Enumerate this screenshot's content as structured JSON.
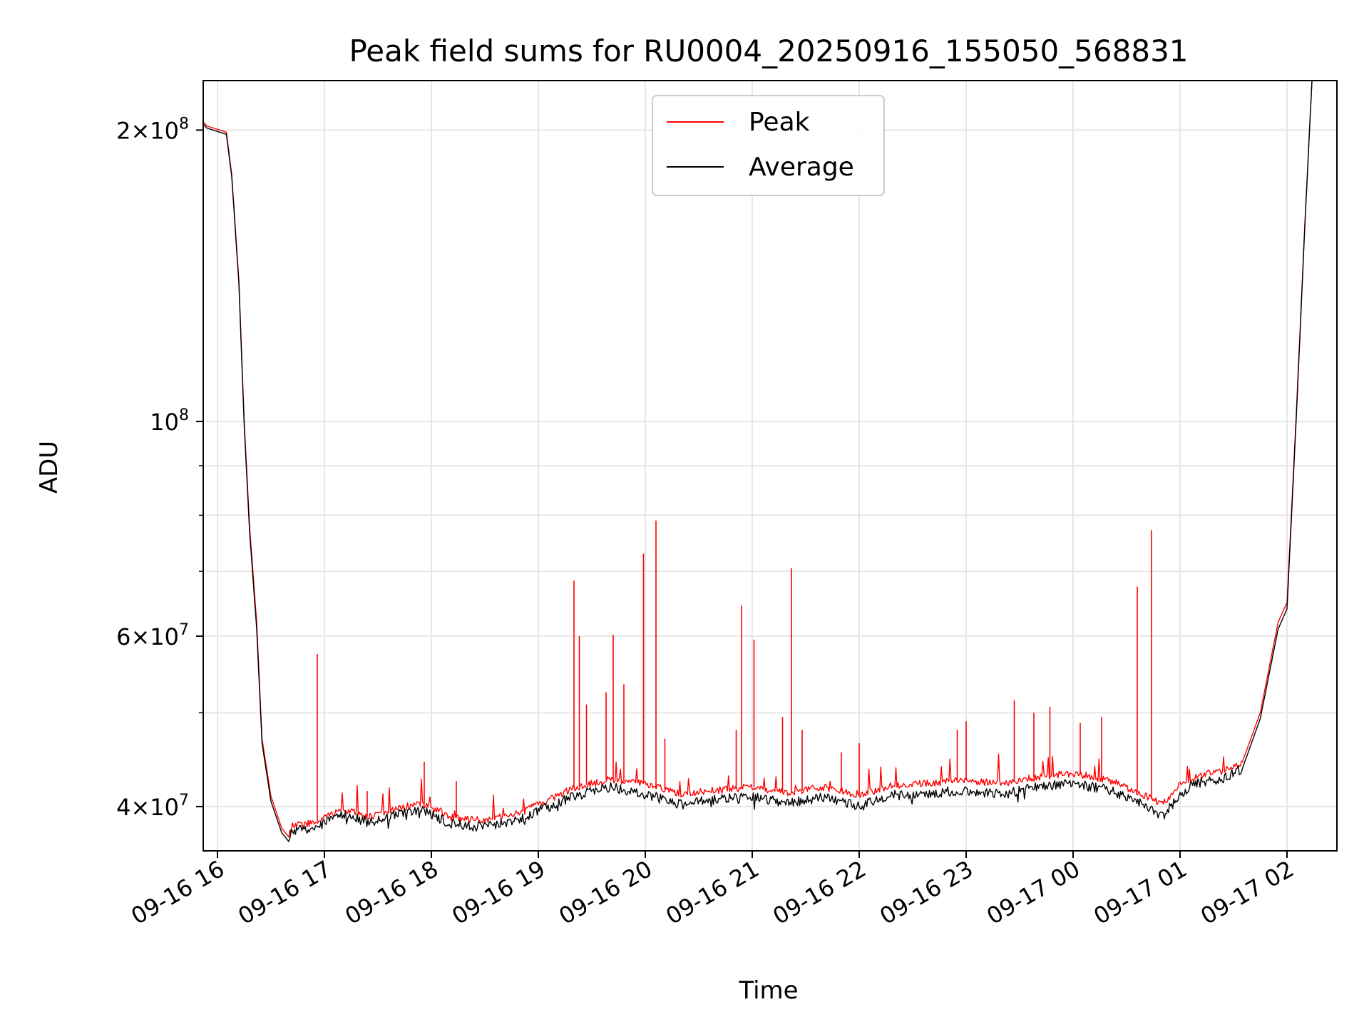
{
  "chart_data": {
    "type": "line",
    "title": "Peak field sums for RU0004_20250916_155050_568831",
    "xlabel": "Time",
    "ylabel": "ADU",
    "y_scale": "log",
    "ylim": [
      36000000,
      225000000
    ],
    "xlim": [
      "2025-09-16 15:52",
      "2025-09-17 02:28"
    ],
    "grid": true,
    "legend_position": "top-center",
    "x_ticks": [
      {
        "t": "2025-09-16 16:00",
        "label": "09-16 16"
      },
      {
        "t": "2025-09-16 17:00",
        "label": "09-16 17"
      },
      {
        "t": "2025-09-16 18:00",
        "label": "09-16 18"
      },
      {
        "t": "2025-09-16 19:00",
        "label": "09-16 19"
      },
      {
        "t": "2025-09-16 20:00",
        "label": "09-16 20"
      },
      {
        "t": "2025-09-16 21:00",
        "label": "09-16 21"
      },
      {
        "t": "2025-09-16 22:00",
        "label": "09-16 22"
      },
      {
        "t": "2025-09-16 23:00",
        "label": "09-16 23"
      },
      {
        "t": "2025-09-17 00:00",
        "label": "09-17 00"
      },
      {
        "t": "2025-09-17 01:00",
        "label": "09-17 01"
      },
      {
        "t": "2025-09-17 02:00",
        "label": "09-17 02"
      }
    ],
    "y_major_ticks": [
      {
        "value": 40000000,
        "mantissa": "4",
        "exp": "7"
      },
      {
        "value": 60000000,
        "mantissa": "6",
        "exp": "7"
      },
      {
        "value": 100000000,
        "mantissa": "",
        "exp": "8"
      },
      {
        "value": 200000000,
        "mantissa": "2",
        "exp": "8"
      }
    ],
    "y_minor_ticks": [
      50000000,
      70000000,
      80000000,
      90000000
    ],
    "series": [
      {
        "name": "Peak",
        "color": "#ff0000",
        "baseline": [
          [
            "2025-09-16 15:52",
            204000000
          ],
          [
            "2025-09-16 15:54",
            202000000
          ],
          [
            "2025-09-16 16:05",
            199000000
          ],
          [
            "2025-09-16 16:08",
            180000000
          ],
          [
            "2025-09-16 16:12",
            140000000
          ],
          [
            "2025-09-16 16:15",
            100000000
          ],
          [
            "2025-09-16 16:18",
            78000000
          ],
          [
            "2025-09-16 16:22",
            62000000
          ],
          [
            "2025-09-16 16:25",
            47000000
          ],
          [
            "2025-09-16 16:30",
            41000000
          ],
          [
            "2025-09-16 16:36",
            38000000
          ],
          [
            "2025-09-16 16:40",
            37200000
          ],
          [
            "2025-09-16 16:42",
            38200000
          ],
          [
            "2025-09-16 16:55",
            38500000
          ],
          [
            "2025-09-16 17:10",
            39800000
          ],
          [
            "2025-09-16 17:25",
            39000000
          ],
          [
            "2025-09-16 17:40",
            39800000
          ],
          [
            "2025-09-16 17:55",
            40300000
          ],
          [
            "2025-09-16 18:10",
            39000000
          ],
          [
            "2025-09-16 18:30",
            38700000
          ],
          [
            "2025-09-16 18:50",
            39400000
          ],
          [
            "2025-09-16 19:00",
            40200000
          ],
          [
            "2025-09-16 19:20",
            41800000
          ],
          [
            "2025-09-16 19:40",
            42700000
          ],
          [
            "2025-09-16 20:00",
            42200000
          ],
          [
            "2025-09-16 20:20",
            41200000
          ],
          [
            "2025-09-16 20:40",
            41600000
          ],
          [
            "2025-09-16 21:00",
            41900000
          ],
          [
            "2025-09-16 21:20",
            41300000
          ],
          [
            "2025-09-16 21:40",
            41900000
          ],
          [
            "2025-09-16 22:00",
            41100000
          ],
          [
            "2025-09-16 22:20",
            42100000
          ],
          [
            "2025-09-16 22:40",
            42300000
          ],
          [
            "2025-09-16 23:00",
            42600000
          ],
          [
            "2025-09-16 23:20",
            42200000
          ],
          [
            "2025-09-16 23:40",
            42900000
          ],
          [
            "2025-09-17 00:00",
            43300000
          ],
          [
            "2025-09-17 00:20",
            42600000
          ],
          [
            "2025-09-17 00:40",
            41100000
          ],
          [
            "2025-09-17 00:50",
            40200000
          ],
          [
            "2025-09-17 01:00",
            42100000
          ],
          [
            "2025-09-17 01:10",
            43100000
          ],
          [
            "2025-09-17 01:25",
            43600000
          ],
          [
            "2025-09-17 01:35",
            44500000
          ],
          [
            "2025-09-17 01:45",
            50000000
          ],
          [
            "2025-09-17 01:55",
            62000000
          ],
          [
            "2025-09-17 02:00",
            65000000
          ],
          [
            "2025-09-17 02:05",
            100000000
          ],
          [
            "2025-09-17 02:10",
            160000000
          ],
          [
            "2025-09-17 02:14",
            225000000
          ],
          [
            "2025-09-17 02:28",
            225000000
          ]
        ],
        "spikes": [
          [
            "2025-09-16 16:56",
            57500000
          ],
          [
            "2025-09-16 17:24",
            41500000
          ],
          [
            "2025-09-16 17:56",
            44500000
          ],
          [
            "2025-09-16 18:14",
            42500000
          ],
          [
            "2025-09-16 19:20",
            68500000
          ],
          [
            "2025-09-16 19:23",
            60000000
          ],
          [
            "2025-09-16 19:27",
            51000000
          ],
          [
            "2025-09-16 19:38",
            52500000
          ],
          [
            "2025-09-16 19:42",
            60200000
          ],
          [
            "2025-09-16 19:48",
            53500000
          ],
          [
            "2025-09-16 19:59",
            73000000
          ],
          [
            "2025-09-16 20:06",
            79000000
          ],
          [
            "2025-09-16 20:11",
            47000000
          ],
          [
            "2025-09-16 20:51",
            48000000
          ],
          [
            "2025-09-16 20:54",
            64500000
          ],
          [
            "2025-09-16 21:01",
            59500000
          ],
          [
            "2025-09-16 21:17",
            49500000
          ],
          [
            "2025-09-16 21:22",
            70500000
          ],
          [
            "2025-09-16 21:28",
            48000000
          ],
          [
            "2025-09-16 21:50",
            45500000
          ],
          [
            "2025-09-16 22:00",
            46500000
          ],
          [
            "2025-09-16 22:55",
            48000000
          ],
          [
            "2025-09-16 23:00",
            49000000
          ],
          [
            "2025-09-16 23:27",
            51500000
          ],
          [
            "2025-09-16 23:38",
            50000000
          ],
          [
            "2025-09-16 23:47",
            50700000
          ],
          [
            "2025-09-17 00:04",
            48800000
          ],
          [
            "2025-09-17 00:16",
            49500000
          ],
          [
            "2025-09-17 00:36",
            67500000
          ],
          [
            "2025-09-17 00:44",
            77200000
          ]
        ]
      },
      {
        "name": "Average",
        "color": "#000000",
        "baseline": [
          [
            "2025-09-16 15:52",
            203000000
          ],
          [
            "2025-09-16 15:54",
            201000000
          ],
          [
            "2025-09-16 16:05",
            198000000
          ],
          [
            "2025-09-16 16:08",
            179000000
          ],
          [
            "2025-09-16 16:12",
            139000000
          ],
          [
            "2025-09-16 16:15",
            99000000
          ],
          [
            "2025-09-16 16:18",
            77000000
          ],
          [
            "2025-09-16 16:22",
            61000000
          ],
          [
            "2025-09-16 16:25",
            46500000
          ],
          [
            "2025-09-16 16:30",
            40500000
          ],
          [
            "2025-09-16 16:36",
            37600000
          ],
          [
            "2025-09-16 16:40",
            36800000
          ],
          [
            "2025-09-16 16:42",
            37800000
          ],
          [
            "2025-09-16 16:55",
            38000000
          ],
          [
            "2025-09-16 17:10",
            39300000
          ],
          [
            "2025-09-16 17:25",
            38500000
          ],
          [
            "2025-09-16 17:40",
            39300000
          ],
          [
            "2025-09-16 17:55",
            39800000
          ],
          [
            "2025-09-16 18:10",
            38400000
          ],
          [
            "2025-09-16 18:30",
            38100000
          ],
          [
            "2025-09-16 18:50",
            38900000
          ],
          [
            "2025-09-16 19:00",
            39600000
          ],
          [
            "2025-09-16 19:20",
            41000000
          ],
          [
            "2025-09-16 19:40",
            41900000
          ],
          [
            "2025-09-16 20:00",
            41200000
          ],
          [
            "2025-09-16 20:20",
            40200000
          ],
          [
            "2025-09-16 20:40",
            40700000
          ],
          [
            "2025-09-16 21:00",
            40900000
          ],
          [
            "2025-09-16 21:20",
            40300000
          ],
          [
            "2025-09-16 21:40",
            40900000
          ],
          [
            "2025-09-16 22:00",
            40100000
          ],
          [
            "2025-09-16 22:20",
            41100000
          ],
          [
            "2025-09-16 22:40",
            41300000
          ],
          [
            "2025-09-16 23:00",
            41600000
          ],
          [
            "2025-09-16 23:20",
            41200000
          ],
          [
            "2025-09-16 23:40",
            41900000
          ],
          [
            "2025-09-17 00:00",
            42300000
          ],
          [
            "2025-09-17 00:20",
            41600000
          ],
          [
            "2025-09-17 00:40",
            40100000
          ],
          [
            "2025-09-17 00:50",
            39000000
          ],
          [
            "2025-09-17 01:00",
            41300000
          ],
          [
            "2025-09-17 01:10",
            42300000
          ],
          [
            "2025-09-17 01:25",
            42800000
          ],
          [
            "2025-09-17 01:35",
            43800000
          ],
          [
            "2025-09-17 01:45",
            49300000
          ],
          [
            "2025-09-17 01:55",
            61000000
          ],
          [
            "2025-09-17 02:00",
            64000000
          ],
          [
            "2025-09-17 02:05",
            99000000
          ],
          [
            "2025-09-17 02:10",
            159000000
          ],
          [
            "2025-09-17 02:14",
            225000000
          ],
          [
            "2025-09-17 02:28",
            225000000
          ]
        ],
        "spikes": []
      }
    ]
  }
}
